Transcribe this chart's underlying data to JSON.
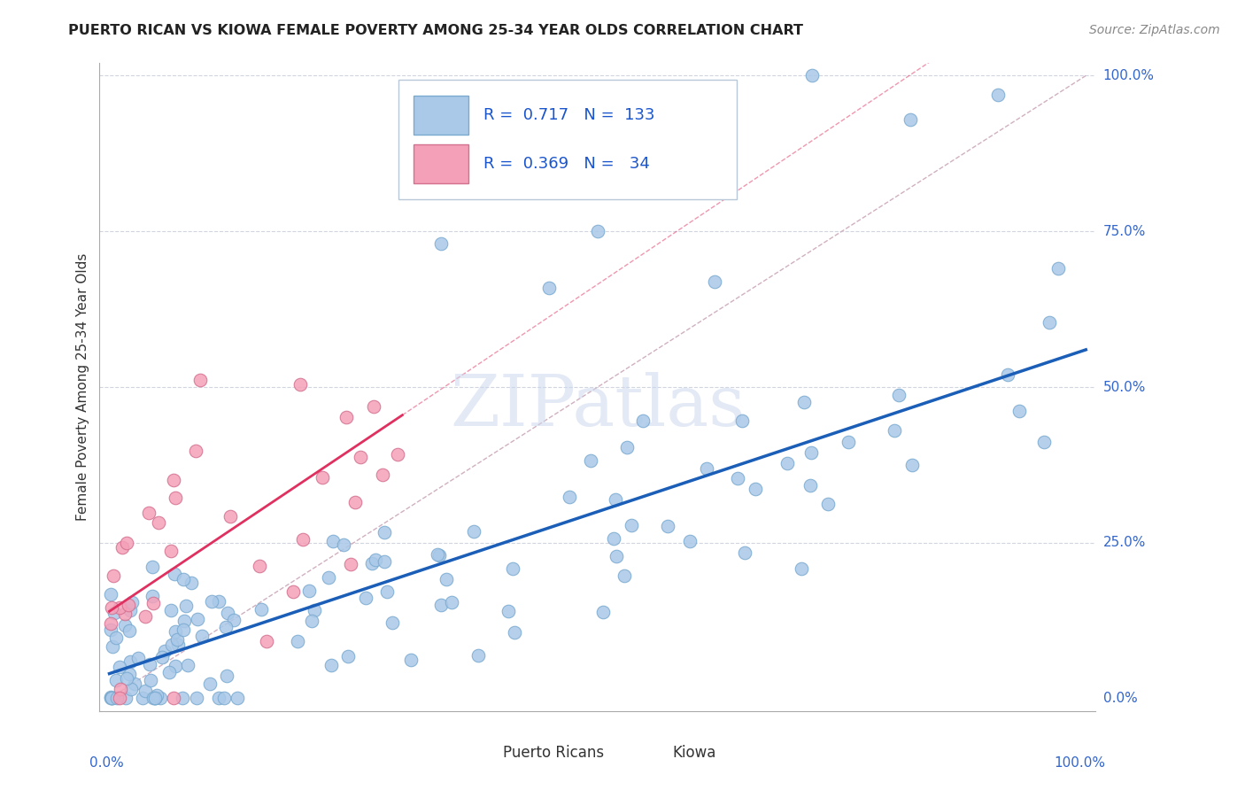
{
  "title": "PUERTO RICAN VS KIOWA FEMALE POVERTY AMONG 25-34 YEAR OLDS CORRELATION CHART",
  "source": "Source: ZipAtlas.com",
  "ylabel": "Female Poverty Among 25-34 Year Olds",
  "blue_R": 0.717,
  "blue_N": 133,
  "pink_R": 0.369,
  "pink_N": 34,
  "blue_color": "#aac8e8",
  "blue_edge_color": "#7aaad0",
  "pink_color": "#f4a0b8",
  "pink_edge_color": "#d47090",
  "blue_line_color": "#1a5eb8",
  "pink_line_color": "#e03060",
  "diag_color": "#d0b0c0",
  "legend_label_blue": "Puerto Ricans",
  "legend_label_pink": "Kiowa",
  "blue_intercept": 0.04,
  "blue_slope": 0.52,
  "pink_intercept": 0.14,
  "pink_slope": 1.05
}
